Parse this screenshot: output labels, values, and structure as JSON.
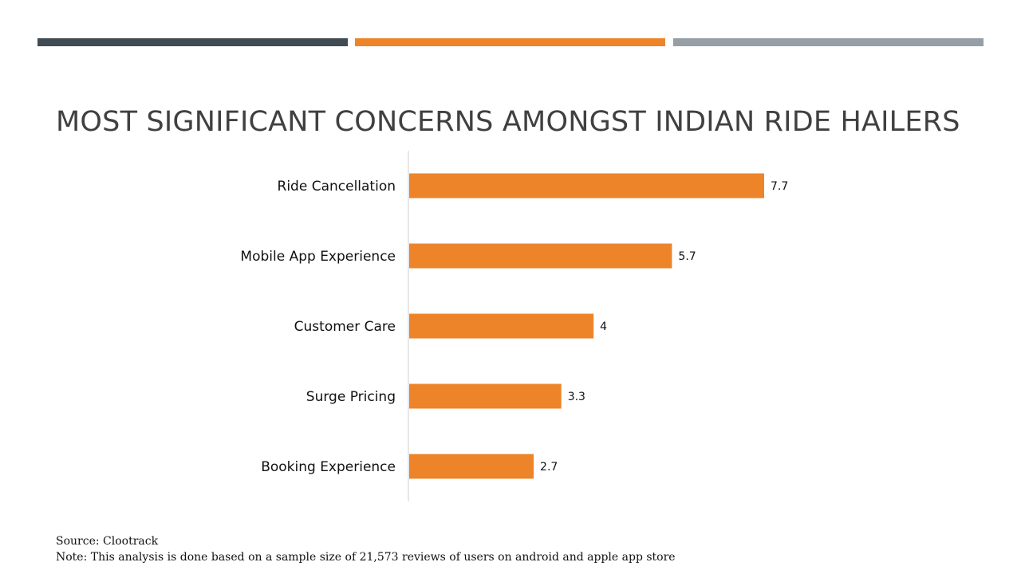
{
  "slide": {
    "title": "MOST SIGNIFICANT CONCERNS AMONGST INDIAN RIDE HAILERS",
    "source": "Source: Clootrack",
    "note": "Note: This analysis is done based on a sample size of 21,573 reviews of users on android and apple app store",
    "colors": {
      "bar_dark": "#414B53",
      "bar_orange": "#ED8429",
      "bar_grey": "#969EA6"
    }
  },
  "chart_data": {
    "type": "bar",
    "orientation": "horizontal",
    "categories": [
      "Ride Cancellation",
      "Mobile App Experience",
      "Customer Care",
      "Surge Pricing",
      "Booking Experience"
    ],
    "values": [
      7.7,
      5.7,
      4,
      3.3,
      2.7
    ],
    "value_labels": [
      "7.7",
      "5.7",
      "4",
      "3.3",
      "2.7"
    ],
    "xlim": [
      0,
      10
    ],
    "bar_color": "#ED8429",
    "grid": false,
    "legend": "none"
  }
}
